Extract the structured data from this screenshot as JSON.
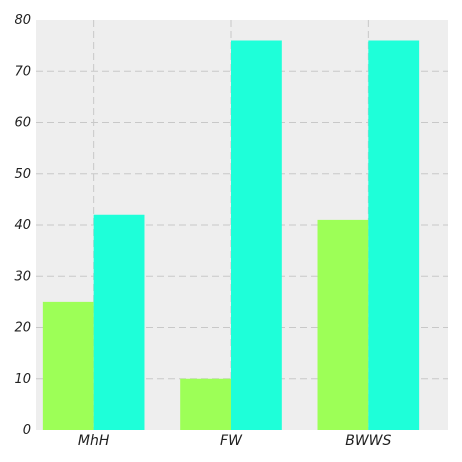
{
  "chart_data": {
    "type": "bar",
    "categories": [
      "MhH",
      "FW",
      "BWWS"
    ],
    "series": [
      {
        "values": [
          25,
          10,
          41
        ],
        "color": "#9dff57"
      },
      {
        "values": [
          42,
          76,
          76
        ],
        "color": "#1effd9"
      }
    ],
    "title": "",
    "xlabel": "",
    "ylabel": "",
    "ylim": [
      0,
      80
    ],
    "yticks": [
      0,
      10,
      20,
      30,
      40,
      50,
      60,
      70,
      80
    ],
    "grid": true,
    "background_color": "#eeeeee"
  }
}
